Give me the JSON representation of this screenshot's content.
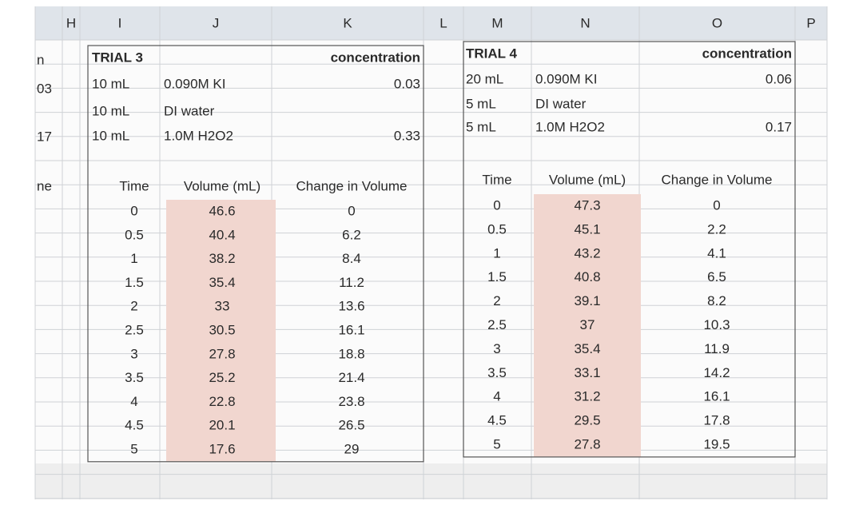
{
  "column_headers": [
    "H",
    "I",
    "J",
    "K",
    "L",
    "M",
    "N",
    "O",
    "P"
  ],
  "left_fragments": [
    "n",
    "03",
    "17",
    "ne"
  ],
  "trials": [
    {
      "title": "TRIAL 3",
      "concentration_header": "concentration",
      "reagents": [
        {
          "volume": "10 mL",
          "name": "0.090M KI",
          "concentration": "0.03"
        },
        {
          "volume": "10 mL",
          "name": "DI water"
        },
        {
          "volume": "10 mL",
          "name": "1.0M H2O2",
          "concentration": "0.33"
        }
      ],
      "table": {
        "headers": [
          "Time",
          "Volume (mL)",
          "Change in Volume"
        ],
        "rows": [
          [
            "0",
            "46.6",
            "0"
          ],
          [
            "0.5",
            "40.4",
            "6.2"
          ],
          [
            "1",
            "38.2",
            "8.4"
          ],
          [
            "1.5",
            "35.4",
            "11.2"
          ],
          [
            "2",
            "33",
            "13.6"
          ],
          [
            "2.5",
            "30.5",
            "16.1"
          ],
          [
            "3",
            "27.8",
            "18.8"
          ],
          [
            "3.5",
            "25.2",
            "21.4"
          ],
          [
            "4",
            "22.8",
            "23.8"
          ],
          [
            "4.5",
            "20.1",
            "26.5"
          ],
          [
            "5",
            "17.6",
            "29"
          ]
        ]
      }
    },
    {
      "title": "TRIAL 4",
      "concentration_header": "concentration",
      "reagents": [
        {
          "volume": "20 mL",
          "name": "0.090M KI",
          "concentration": "0.06"
        },
        {
          "volume": "5 mL",
          "name": "DI water"
        },
        {
          "volume": "5 mL",
          "name": "1.0M H2O2",
          "concentration": "0.17"
        }
      ],
      "table": {
        "headers": [
          "Time",
          "Volume (mL)",
          "Change in Volume"
        ],
        "rows": [
          [
            "0",
            "47.3",
            "0"
          ],
          [
            "0.5",
            "45.1",
            "2.2"
          ],
          [
            "1",
            "43.2",
            "4.1"
          ],
          [
            "1.5",
            "40.8",
            "6.5"
          ],
          [
            "2",
            "39.1",
            "8.2"
          ],
          [
            "2.5",
            "37",
            "10.3"
          ],
          [
            "3",
            "35.4",
            "11.9"
          ],
          [
            "3.5",
            "33.1",
            "14.2"
          ],
          [
            "4",
            "31.2",
            "16.1"
          ],
          [
            "4.5",
            "29.5",
            "17.8"
          ],
          [
            "5",
            "27.8",
            "19.5"
          ]
        ]
      }
    }
  ]
}
